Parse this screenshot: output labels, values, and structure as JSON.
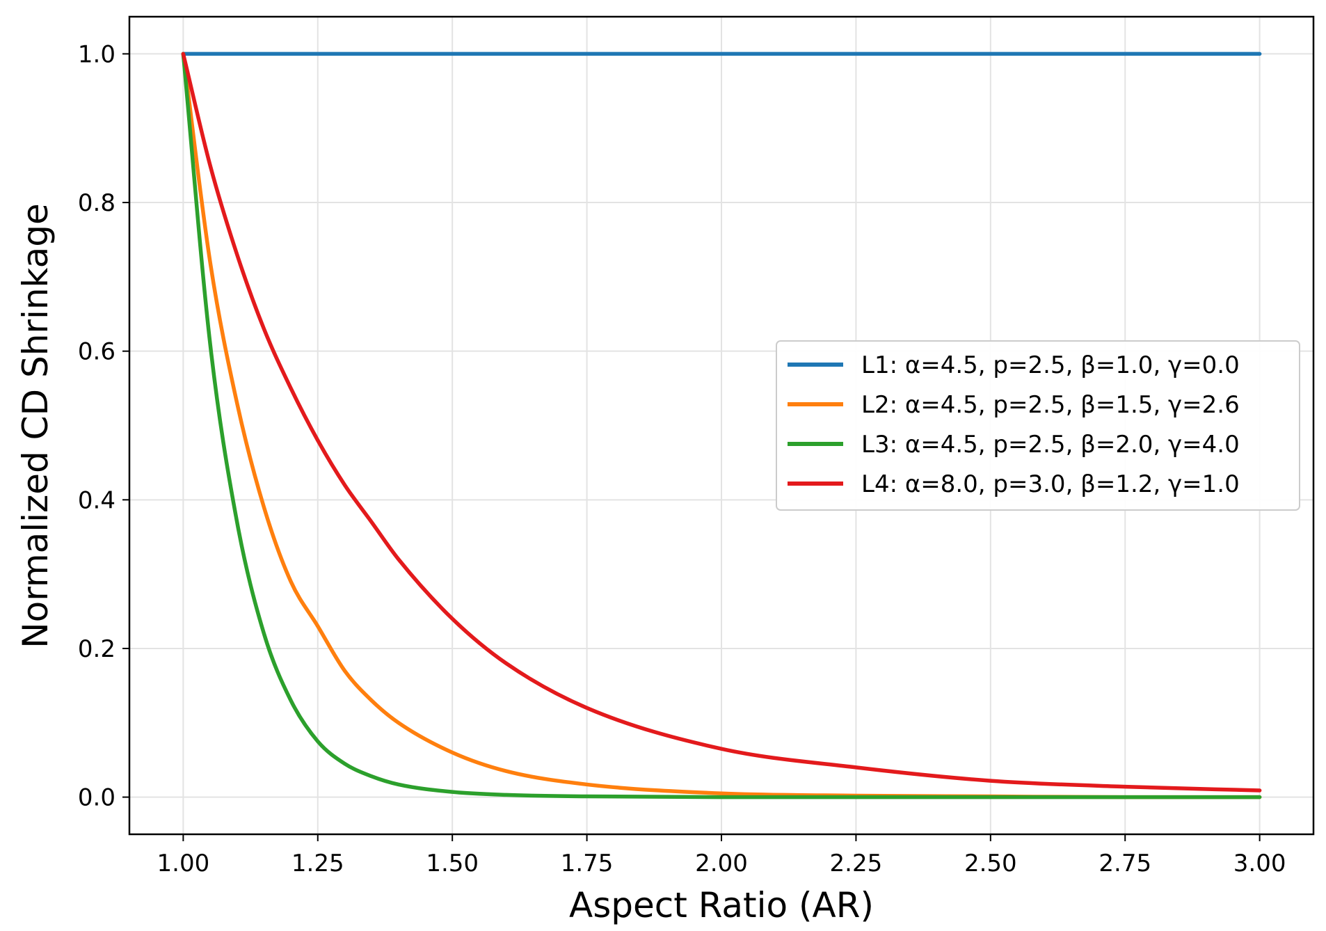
{
  "chart_data": {
    "type": "line",
    "title": "",
    "xlabel": "Aspect Ratio (AR)",
    "ylabel": "Normalized CD Shrinkage",
    "xlim": [
      0.9,
      3.1
    ],
    "ylim": [
      -0.05,
      1.05
    ],
    "xticks": [
      "1.00",
      "1.25",
      "1.50",
      "1.75",
      "2.00",
      "2.25",
      "2.50",
      "2.75",
      "3.00"
    ],
    "yticks": [
      "0.0",
      "0.2",
      "0.4",
      "0.6",
      "0.8",
      "1.0"
    ],
    "grid": true,
    "legend_position": "center-right",
    "x": [
      1.0,
      1.05,
      1.1,
      1.15,
      1.2,
      1.25,
      1.3,
      1.35,
      1.4,
      1.5,
      1.6,
      1.75,
      2.0,
      2.25,
      2.5,
      2.75,
      3.0
    ],
    "series": [
      {
        "name": "L1: α=4.5, p=2.5, β=1.0, γ=0.0",
        "color": "#1f77b4",
        "values": [
          1.0,
          1.0,
          1.0,
          1.0,
          1.0,
          1.0,
          1.0,
          1.0,
          1.0,
          1.0,
          1.0,
          1.0,
          1.0,
          1.0,
          1.0,
          1.0,
          1.0
        ]
      },
      {
        "name": "L2: α=4.5, p=2.5, β=1.5, γ=2.6",
        "color": "#ff7f0e",
        "values": [
          1.0,
          0.72,
          0.53,
          0.39,
          0.29,
          0.23,
          0.17,
          0.13,
          0.1,
          0.06,
          0.035,
          0.017,
          0.005,
          0.002,
          0.001,
          0.0,
          0.0
        ]
      },
      {
        "name": "L3: α=4.5, p=2.5, β=2.0, γ=4.0",
        "color": "#2ca02c",
        "values": [
          1.0,
          0.61,
          0.37,
          0.22,
          0.13,
          0.075,
          0.045,
          0.028,
          0.017,
          0.007,
          0.003,
          0.001,
          0.0,
          0.0,
          0.0,
          0.0,
          0.0
        ]
      },
      {
        "name": "L4: α=8.0, p=3.0, β=1.2, γ=1.0",
        "color": "#e31a1c",
        "values": [
          1.0,
          0.85,
          0.73,
          0.63,
          0.55,
          0.48,
          0.42,
          0.37,
          0.32,
          0.24,
          0.18,
          0.12,
          0.065,
          0.04,
          0.022,
          0.014,
          0.009
        ]
      }
    ]
  }
}
